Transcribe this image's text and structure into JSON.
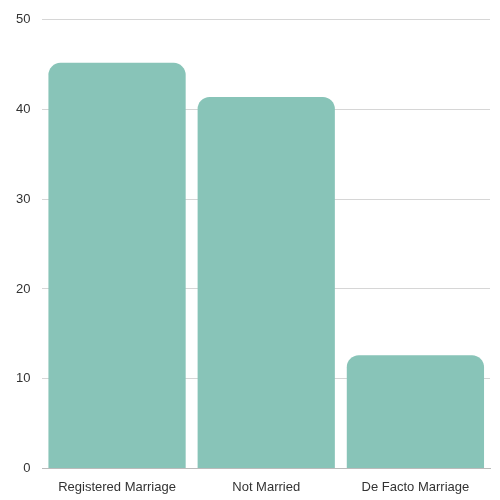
{
  "chart_data": {
    "type": "bar",
    "categories": [
      "Registered Marriage",
      "Not Married",
      "De Facto Marriage"
    ],
    "values": [
      45.2,
      41.4,
      12.6
    ],
    "color": "#88c4b8",
    "ylim": [
      0,
      50
    ],
    "yticks": [
      0,
      10,
      20,
      30,
      40,
      50
    ],
    "grid": true
  }
}
